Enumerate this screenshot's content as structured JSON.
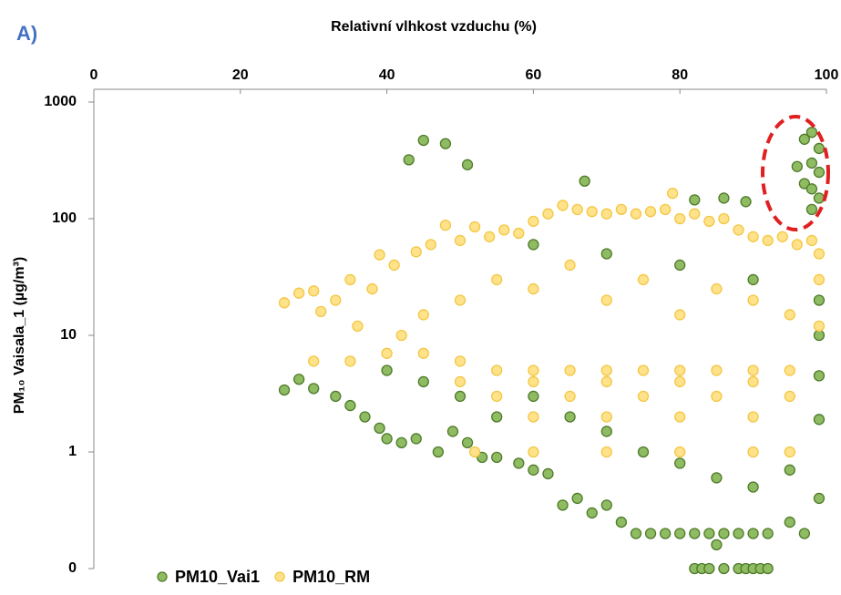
{
  "chart_data": {
    "type": "scatter",
    "panel_label": "A)",
    "title": "Relativní vlhkost vzduchu (%)",
    "y_label": "PM₁₀  Vaisala_1 (µg/m³)",
    "xlim": [
      0,
      100
    ],
    "xticks": [
      0,
      20,
      40,
      60,
      80,
      100
    ],
    "ylim": [
      0.1,
      1000
    ],
    "log_y": true,
    "yticks": [
      {
        "value": 0.1,
        "label": "0"
      },
      1,
      10,
      100,
      1000
    ],
    "legend": "bottom-left",
    "series": [
      {
        "name": "PM10_Vai1",
        "color": "#8fbc62",
        "edge": "#4e7a2a",
        "x": [
          45,
          48,
          43,
          51,
          67,
          82,
          86,
          89,
          97,
          98,
          99,
          98,
          96,
          97,
          99,
          98,
          98,
          99,
          26,
          28,
          30,
          33,
          35,
          37,
          39,
          40,
          42,
          44,
          47,
          49,
          51,
          53,
          55,
          58,
          60,
          62,
          64,
          66,
          68,
          70,
          72,
          74,
          76,
          78,
          80,
          82,
          84,
          85,
          86,
          88,
          90,
          92,
          95,
          97,
          82,
          83,
          84,
          86,
          88,
          89,
          90,
          91,
          92,
          40,
          45,
          50,
          55,
          60,
          65,
          70,
          75,
          80,
          85,
          90,
          95,
          99,
          99,
          99,
          99,
          99,
          60,
          70,
          80,
          90
        ],
        "values": [
          470,
          440,
          320,
          290,
          210,
          145,
          150,
          140,
          480,
          550,
          400,
          300,
          280,
          200,
          250,
          180,
          120,
          150,
          3.4,
          4.2,
          3.5,
          3,
          2.5,
          2,
          1.6,
          1.3,
          1.2,
          1.3,
          1,
          1.5,
          1.2,
          0.9,
          0.9,
          0.8,
          0.7,
          0.65,
          0.35,
          0.4,
          0.3,
          0.35,
          0.25,
          0.2,
          0.2,
          0.2,
          0.2,
          0.2,
          0.2,
          0.16,
          0.2,
          0.2,
          0.2,
          0.2,
          0.25,
          0.2,
          0.1,
          0.1,
          0.1,
          0.1,
          0.1,
          0.1,
          0.1,
          0.1,
          0.1,
          5,
          4,
          3,
          2,
          3,
          2,
          1.5,
          1,
          0.8,
          0.6,
          0.5,
          0.7,
          0.4,
          1.9,
          4.5,
          10,
          20,
          60,
          50,
          40,
          30
        ]
      },
      {
        "name": "PM10_RM",
        "color": "#ffe28a",
        "edge": "#f2c744",
        "x": [
          26,
          28,
          30,
          31,
          33,
          35,
          36,
          38,
          39,
          41,
          42,
          44,
          46,
          48,
          50,
          52,
          54,
          56,
          58,
          60,
          62,
          64,
          66,
          68,
          70,
          72,
          74,
          76,
          78,
          79,
          80,
          82,
          84,
          86,
          88,
          90,
          92,
          94,
          96,
          98,
          99,
          30,
          35,
          40,
          45,
          50,
          55,
          60,
          65,
          70,
          75,
          80,
          85,
          90,
          95,
          50,
          60,
          70,
          80,
          90,
          55,
          65,
          75,
          85,
          95,
          60,
          70,
          80,
          90,
          52,
          60,
          70,
          80,
          90,
          95,
          45,
          50,
          55,
          60,
          65,
          70,
          75,
          80,
          85,
          90,
          95,
          99,
          99
        ],
        "values": [
          19,
          23,
          24,
          16,
          20,
          30,
          12,
          25,
          49,
          40,
          10,
          52,
          60,
          88,
          65,
          85,
          70,
          80,
          75,
          95,
          110,
          130,
          120,
          115,
          110,
          120,
          110,
          115,
          120,
          165,
          100,
          110,
          95,
          100,
          80,
          70,
          65,
          70,
          60,
          65,
          50,
          6,
          6,
          7,
          7,
          6,
          5,
          5,
          5,
          5,
          5,
          5,
          5,
          5,
          5,
          4,
          4,
          4,
          4,
          4,
          3,
          3,
          3,
          3,
          3,
          2,
          2,
          2,
          2,
          1,
          1,
          1,
          1,
          1,
          1,
          15,
          20,
          30,
          25,
          40,
          20,
          30,
          15,
          25,
          20,
          15,
          12,
          30
        ]
      }
    ]
  }
}
